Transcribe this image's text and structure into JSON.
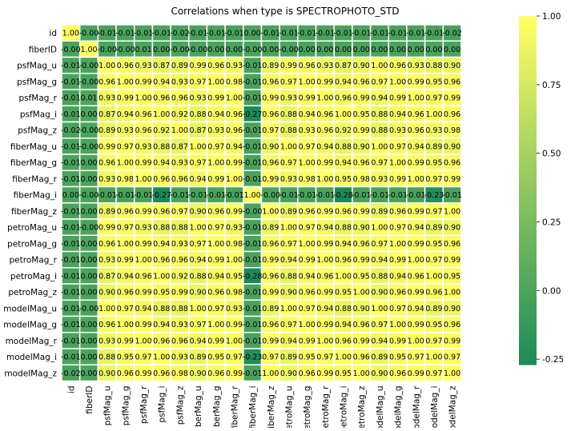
{
  "chart_data": {
    "type": "heatmap",
    "title": "Correlations when type is SPECTROPHOTO_STD",
    "labels": [
      "id",
      "fiberID",
      "psfMag_u",
      "psfMag_g",
      "psfMag_r",
      "psfMag_i",
      "psfMag_z",
      "fiberMag_u",
      "fiberMag_g",
      "fiberMag_r",
      "fiberMag_i",
      "fiberMag_z",
      "petroMag_u",
      "petroMag_g",
      "petroMag_r",
      "petroMag_i",
      "petroMag_z",
      "modelMag_u",
      "modelMag_g",
      "modelMag_r",
      "modelMag_i",
      "modelMag_z"
    ],
    "value_labels": [
      [
        "1.00",
        "-0.00",
        "-0.01",
        "-0.01",
        "-0.01",
        "-0.01",
        "-0.02",
        "-0.01",
        "-0.01",
        "-0.01",
        "0.00",
        "-0.01",
        "-0.01",
        "-0.01",
        "-0.01",
        "-0.01",
        "-0.01",
        "-0.01",
        "-0.01",
        "-0.01",
        "-0.01",
        "-0.02"
      ],
      [
        "-0.00",
        "1.00",
        "-0.00",
        "-0.00",
        "0.01",
        "0.00",
        "-0.00",
        "-0.00",
        "0.00",
        "0.00",
        "-0.00",
        "0.00",
        "-0.00",
        "0.00",
        "0.00",
        "0.00",
        "0.00",
        "0.00",
        "0.00",
        "0.00",
        "0.00",
        "0.00"
      ],
      [
        "-0.01",
        "-0.00",
        "1.00",
        "0.96",
        "0.93",
        "0.87",
        "0.89",
        "0.99",
        "0.96",
        "0.93",
        "-0.01",
        "0.89",
        "0.99",
        "0.96",
        "0.93",
        "0.87",
        "0.90",
        "1.00",
        "0.96",
        "0.93",
        "0.88",
        "0.90"
      ],
      [
        "-0.01",
        "-0.00",
        "0.96",
        "1.00",
        "0.99",
        "0.94",
        "0.93",
        "0.97",
        "1.00",
        "0.98",
        "-0.01",
        "0.96",
        "0.97",
        "1.00",
        "0.99",
        "0.94",
        "0.96",
        "0.97",
        "1.00",
        "0.99",
        "0.95",
        "0.96"
      ],
      [
        "-0.01",
        "0.01",
        "0.93",
        "0.99",
        "1.00",
        "0.96",
        "0.96",
        "0.93",
        "0.99",
        "1.00",
        "-0.01",
        "0.99",
        "0.93",
        "0.99",
        "1.00",
        "0.96",
        "0.99",
        "0.94",
        "0.99",
        "1.00",
        "0.97",
        "0.99"
      ],
      [
        "-0.01",
        "0.00",
        "0.87",
        "0.94",
        "0.96",
        "1.00",
        "0.92",
        "0.88",
        "0.94",
        "0.96",
        "-0.27",
        "0.96",
        "0.88",
        "0.94",
        "0.96",
        "1.00",
        "0.95",
        "0.88",
        "0.94",
        "0.96",
        "1.00",
        "0.96"
      ],
      [
        "-0.02",
        "-0.00",
        "0.89",
        "0.93",
        "0.96",
        "0.92",
        "1.00",
        "0.87",
        "0.93",
        "0.96",
        "-0.01",
        "0.97",
        "0.88",
        "0.93",
        "0.96",
        "0.92",
        "0.99",
        "0.88",
        "0.93",
        "0.96",
        "0.93",
        "0.98"
      ],
      [
        "-0.01",
        "-0.00",
        "0.99",
        "0.97",
        "0.93",
        "0.88",
        "0.87",
        "1.00",
        "0.97",
        "0.94",
        "-0.01",
        "0.90",
        "1.00",
        "0.97",
        "0.94",
        "0.88",
        "0.90",
        "1.00",
        "0.97",
        "0.94",
        "0.89",
        "0.90"
      ],
      [
        "-0.01",
        "0.00",
        "0.96",
        "1.00",
        "0.99",
        "0.94",
        "0.93",
        "0.97",
        "1.00",
        "0.99",
        "-0.01",
        "0.96",
        "0.97",
        "1.00",
        "0.99",
        "0.94",
        "0.96",
        "0.97",
        "1.00",
        "0.99",
        "0.95",
        "0.96"
      ],
      [
        "-0.01",
        "0.00",
        "0.93",
        "0.98",
        "1.00",
        "0.96",
        "0.96",
        "0.94",
        "0.99",
        "1.00",
        "-0.01",
        "0.99",
        "0.93",
        "0.98",
        "1.00",
        "0.95",
        "0.98",
        "0.93",
        "0.99",
        "1.00",
        "0.97",
        "0.99"
      ],
      [
        "0.00",
        "-0.00",
        "-0.01",
        "-0.01",
        "-0.01",
        "-0.27",
        "-0.01",
        "-0.01",
        "-0.01",
        "-0.01",
        "1.00",
        "-0.00",
        "-0.01",
        "-0.01",
        "-0.01",
        "-0.28",
        "-0.01",
        "-0.01",
        "-0.01",
        "-0.01",
        "-0.23",
        "-0.01"
      ],
      [
        "-0.01",
        "0.00",
        "0.89",
        "0.96",
        "0.99",
        "0.96",
        "0.97",
        "0.90",
        "0.96",
        "0.99",
        "-0.00",
        "1.00",
        "0.89",
        "0.96",
        "0.99",
        "0.96",
        "0.99",
        "0.89",
        "0.96",
        "0.99",
        "0.97",
        "1.00"
      ],
      [
        "-0.01",
        "-0.00",
        "0.99",
        "0.97",
        "0.93",
        "0.88",
        "0.88",
        "1.00",
        "0.97",
        "0.93",
        "-0.01",
        "0.89",
        "1.00",
        "0.97",
        "0.94",
        "0.88",
        "0.90",
        "1.00",
        "0.97",
        "0.94",
        "0.89",
        "0.90"
      ],
      [
        "-0.01",
        "0.00",
        "0.96",
        "1.00",
        "0.99",
        "0.94",
        "0.93",
        "0.97",
        "1.00",
        "0.98",
        "-0.01",
        "0.96",
        "0.97",
        "1.00",
        "0.99",
        "0.94",
        "0.96",
        "0.97",
        "1.00",
        "0.99",
        "0.95",
        "0.96"
      ],
      [
        "-0.01",
        "0.00",
        "0.93",
        "0.99",
        "1.00",
        "0.96",
        "0.96",
        "0.94",
        "0.99",
        "1.00",
        "-0.01",
        "0.99",
        "0.94",
        "0.99",
        "1.00",
        "0.96",
        "0.99",
        "0.94",
        "0.99",
        "1.00",
        "0.97",
        "0.99"
      ],
      [
        "-0.01",
        "0.00",
        "0.87",
        "0.94",
        "0.96",
        "1.00",
        "0.92",
        "0.88",
        "0.94",
        "0.95",
        "-0.28",
        "0.96",
        "0.88",
        "0.94",
        "0.96",
        "1.00",
        "0.95",
        "0.88",
        "0.94",
        "0.96",
        "1.00",
        "0.95"
      ],
      [
        "-0.01",
        "0.00",
        "0.90",
        "0.96",
        "0.99",
        "0.95",
        "0.99",
        "0.90",
        "0.96",
        "0.98",
        "-0.01",
        "0.99",
        "0.90",
        "0.96",
        "0.99",
        "0.95",
        "1.00",
        "0.90",
        "0.96",
        "0.99",
        "0.96",
        "1.00"
      ],
      [
        "-0.01",
        "-0.00",
        "1.00",
        "0.97",
        "0.94",
        "0.88",
        "0.88",
        "1.00",
        "0.97",
        "0.93",
        "-0.01",
        "0.89",
        "1.00",
        "0.97",
        "0.94",
        "0.88",
        "0.90",
        "1.00",
        "0.97",
        "0.94",
        "0.89",
        "0.90"
      ],
      [
        "-0.01",
        "0.00",
        "0.96",
        "1.00",
        "0.99",
        "0.94",
        "0.93",
        "0.97",
        "1.00",
        "0.99",
        "-0.01",
        "0.96",
        "0.97",
        "1.00",
        "0.99",
        "0.94",
        "0.96",
        "0.97",
        "1.00",
        "0.99",
        "0.95",
        "0.96"
      ],
      [
        "-0.01",
        "0.00",
        "0.93",
        "0.99",
        "1.00",
        "0.96",
        "0.96",
        "0.94",
        "0.99",
        "1.00",
        "-0.01",
        "0.99",
        "0.94",
        "0.99",
        "1.00",
        "0.96",
        "0.99",
        "0.94",
        "0.99",
        "1.00",
        "0.97",
        "0.99"
      ],
      [
        "-0.01",
        "0.00",
        "0.88",
        "0.95",
        "0.97",
        "1.00",
        "0.93",
        "0.89",
        "0.95",
        "0.97",
        "-0.23",
        "0.97",
        "0.89",
        "0.95",
        "0.97",
        "1.00",
        "0.96",
        "0.89",
        "0.95",
        "0.97",
        "1.00",
        "0.97"
      ],
      [
        "-0.02",
        "0.00",
        "0.90",
        "0.96",
        "0.99",
        "0.96",
        "0.98",
        "0.90",
        "0.96",
        "0.99",
        "-0.01",
        "1.00",
        "0.90",
        "0.96",
        "0.99",
        "0.95",
        "1.00",
        "0.90",
        "0.96",
        "0.99",
        "0.97",
        "1.00"
      ]
    ],
    "colormap": [
      "#1b8a5a",
      "#ffff66"
    ],
    "vmin": -0.27,
    "vmax": 1.0,
    "colorbar_ticks": [
      "1.00",
      "0.75",
      "0.50",
      "0.25",
      "0.00",
      "-0.25"
    ],
    "colorbar_tick_values": [
      1.0,
      0.75,
      0.5,
      0.25,
      0.0,
      -0.25
    ],
    "grid": true
  }
}
